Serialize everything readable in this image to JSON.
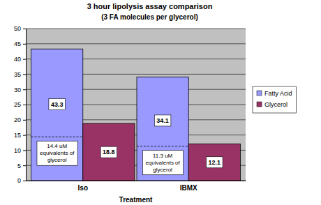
{
  "chart_data": {
    "type": "bar",
    "title": "3 hour lipolysis assay comparison",
    "subtitle": "(3 FA molecules per glycerol)",
    "x_label": "Treatment",
    "categories": [
      "Iso",
      "IBMX"
    ],
    "series": [
      {
        "name": "Fatty Acid",
        "color": "#9999ff",
        "values": [
          43.3,
          34.1
        ]
      },
      {
        "name": "Glycerol",
        "color": "#993366",
        "values": [
          18.8,
          12.1
        ]
      }
    ],
    "ylim": [
      0,
      50
    ],
    "yticks": [
      0,
      5,
      10,
      15,
      20,
      25,
      30,
      35,
      40,
      45,
      50
    ],
    "grid": true,
    "legend": "right",
    "data_labels": true,
    "annotations": [
      {
        "text": "14.4 uM equivalents of glycerol",
        "x": "Iso",
        "y": 14.4
      },
      {
        "text": "11.3 uM equivalents of glycerol",
        "x": "IBMX",
        "y": 11.3
      }
    ]
  }
}
